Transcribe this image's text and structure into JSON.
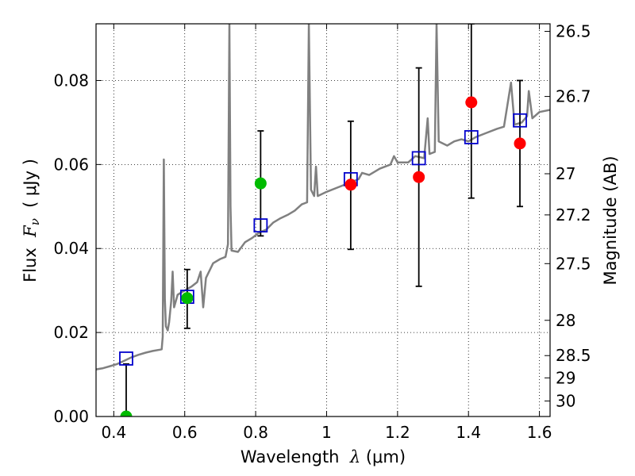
{
  "chart_data": {
    "type": "scatter",
    "xlabel": {
      "pre": "Wavelength  ",
      "sym": "λ",
      "post": " (μm)"
    },
    "ylabel": {
      "pre": "Flux  ",
      "sym": "F",
      "sub": "ν",
      "post": "  ( μJy )"
    },
    "y2label": "Magnitude (AB)",
    "xlim": [
      0.35,
      1.63
    ],
    "ylim": [
      0,
      0.0935
    ],
    "grid": true,
    "x_ticks": [
      0.4,
      0.6,
      0.8,
      1.0,
      1.2,
      1.4,
      1.6
    ],
    "x_tick_labels": [
      "0.4",
      "0.6",
      "0.8",
      "1",
      "1.2",
      "1.4",
      "1.6"
    ],
    "y_ticks": [
      0,
      0.02,
      0.04,
      0.06,
      0.08
    ],
    "y_tick_labels": [
      "0.00",
      "0.02",
      "0.04",
      "0.06",
      "0.08"
    ],
    "y2_ticks": [
      {
        "label": "26.5",
        "flux": 0.0917
      },
      {
        "label": "26.7",
        "flux": 0.0762
      },
      {
        "label": "27",
        "flux": 0.0578
      },
      {
        "label": "27.2",
        "flux": 0.048
      },
      {
        "label": "27.5",
        "flux": 0.0364
      },
      {
        "label": "28",
        "flux": 0.0229
      },
      {
        "label": "28.5",
        "flux": 0.0145
      },
      {
        "label": "29",
        "flux": 0.0092
      },
      {
        "label": "30",
        "flux": 0.0037
      }
    ],
    "series": [
      {
        "name": "model_spectrum",
        "kind": "line",
        "color": "#808080",
        "points": [
          [
            0.35,
            0.0112
          ],
          [
            0.37,
            0.0115
          ],
          [
            0.39,
            0.012
          ],
          [
            0.41,
            0.0125
          ],
          [
            0.43,
            0.0133
          ],
          [
            0.45,
            0.0141
          ],
          [
            0.47,
            0.0147
          ],
          [
            0.49,
            0.0152
          ],
          [
            0.51,
            0.0156
          ],
          [
            0.53,
            0.0159
          ],
          [
            0.535,
            0.016
          ],
          [
            0.538,
            0.019
          ],
          [
            0.541,
            0.0612
          ],
          [
            0.544,
            0.028
          ],
          [
            0.547,
            0.0215
          ],
          [
            0.552,
            0.0205
          ],
          [
            0.556,
            0.0225
          ],
          [
            0.562,
            0.0275
          ],
          [
            0.566,
            0.0345
          ],
          [
            0.57,
            0.026
          ],
          [
            0.58,
            0.029
          ],
          [
            0.6,
            0.03
          ],
          [
            0.62,
            0.031
          ],
          [
            0.635,
            0.032
          ],
          [
            0.645,
            0.0345
          ],
          [
            0.652,
            0.026
          ],
          [
            0.66,
            0.033
          ],
          [
            0.68,
            0.0365
          ],
          [
            0.7,
            0.0375
          ],
          [
            0.715,
            0.038
          ],
          [
            0.722,
            0.041
          ],
          [
            0.726,
            0.0935
          ],
          [
            0.729,
            0.05
          ],
          [
            0.732,
            0.0395
          ],
          [
            0.75,
            0.0392
          ],
          [
            0.77,
            0.0415
          ],
          [
            0.79,
            0.0425
          ],
          [
            0.81,
            0.0438
          ],
          [
            0.83,
            0.0445
          ],
          [
            0.85,
            0.0462
          ],
          [
            0.87,
            0.0472
          ],
          [
            0.89,
            0.048
          ],
          [
            0.91,
            0.049
          ],
          [
            0.93,
            0.0505
          ],
          [
            0.945,
            0.051
          ],
          [
            0.95,
            0.0935
          ],
          [
            0.956,
            0.054
          ],
          [
            0.965,
            0.0525
          ],
          [
            0.97,
            0.0595
          ],
          [
            0.975,
            0.0525
          ],
          [
            1.0,
            0.0535
          ],
          [
            1.03,
            0.0545
          ],
          [
            1.06,
            0.0555
          ],
          [
            1.09,
            0.0565
          ],
          [
            1.1,
            0.058
          ],
          [
            1.12,
            0.0575
          ],
          [
            1.15,
            0.059
          ],
          [
            1.18,
            0.06
          ],
          [
            1.19,
            0.062
          ],
          [
            1.2,
            0.0605
          ],
          [
            1.23,
            0.0605
          ],
          [
            1.25,
            0.062
          ],
          [
            1.275,
            0.0615
          ],
          [
            1.285,
            0.071
          ],
          [
            1.29,
            0.0625
          ],
          [
            1.305,
            0.063
          ],
          [
            1.31,
            0.0935
          ],
          [
            1.316,
            0.0655
          ],
          [
            1.34,
            0.0645
          ],
          [
            1.36,
            0.0655
          ],
          [
            1.38,
            0.066
          ],
          [
            1.4,
            0.0655
          ],
          [
            1.42,
            0.0665
          ],
          [
            1.45,
            0.0675
          ],
          [
            1.48,
            0.0685
          ],
          [
            1.5,
            0.069
          ],
          [
            1.52,
            0.0795
          ],
          [
            1.53,
            0.0695
          ],
          [
            1.55,
            0.07
          ],
          [
            1.565,
            0.0715
          ],
          [
            1.57,
            0.0775
          ],
          [
            1.58,
            0.071
          ],
          [
            1.6,
            0.0725
          ],
          [
            1.63,
            0.073
          ]
        ]
      },
      {
        "name": "model_photometry",
        "kind": "open_square",
        "color": "#0000cc",
        "points": [
          [
            0.435,
            0.0138
          ],
          [
            0.607,
            0.0285
          ],
          [
            0.814,
            0.0455
          ],
          [
            1.068,
            0.0565
          ],
          [
            1.26,
            0.0615
          ],
          [
            1.408,
            0.0665
          ],
          [
            1.545,
            0.0705
          ]
        ]
      },
      {
        "name": "observed_red",
        "kind": "filled_circle",
        "color": "#ff0000",
        "points": [
          {
            "x": 1.068,
            "y": 0.0552,
            "lo": null,
            "hi": null
          },
          {
            "x": 1.26,
            "y": 0.057,
            "lo": null,
            "hi": null
          },
          {
            "x": 1.408,
            "y": 0.0748,
            "lo": null,
            "hi": null
          },
          {
            "x": 1.545,
            "y": 0.065,
            "lo": null,
            "hi": null
          }
        ]
      },
      {
        "name": "observed_green",
        "kind": "filled_circle",
        "color": "#00bb00",
        "points": [
          {
            "x": 0.435,
            "y": 0.0,
            "lo": null,
            "hi": null
          },
          {
            "x": 0.607,
            "y": 0.0282,
            "lo": null,
            "hi": null
          },
          {
            "x": 0.814,
            "y": 0.0555,
            "lo": null,
            "hi": null
          }
        ]
      },
      {
        "name": "error_bars",
        "kind": "errorbar",
        "color": "#000000",
        "points": [
          {
            "x": 0.435,
            "lo": 0.0,
            "hi": 0.0125
          },
          {
            "x": 0.607,
            "lo": 0.021,
            "hi": 0.035
          },
          {
            "x": 0.814,
            "lo": 0.043,
            "hi": 0.068
          },
          {
            "x": 1.068,
            "lo": 0.0398,
            "hi": 0.0703
          },
          {
            "x": 1.26,
            "lo": 0.031,
            "hi": 0.083
          },
          {
            "x": 1.408,
            "lo": 0.052,
            "hi": 0.0935
          },
          {
            "x": 1.545,
            "lo": 0.05,
            "hi": 0.08
          }
        ]
      }
    ]
  }
}
